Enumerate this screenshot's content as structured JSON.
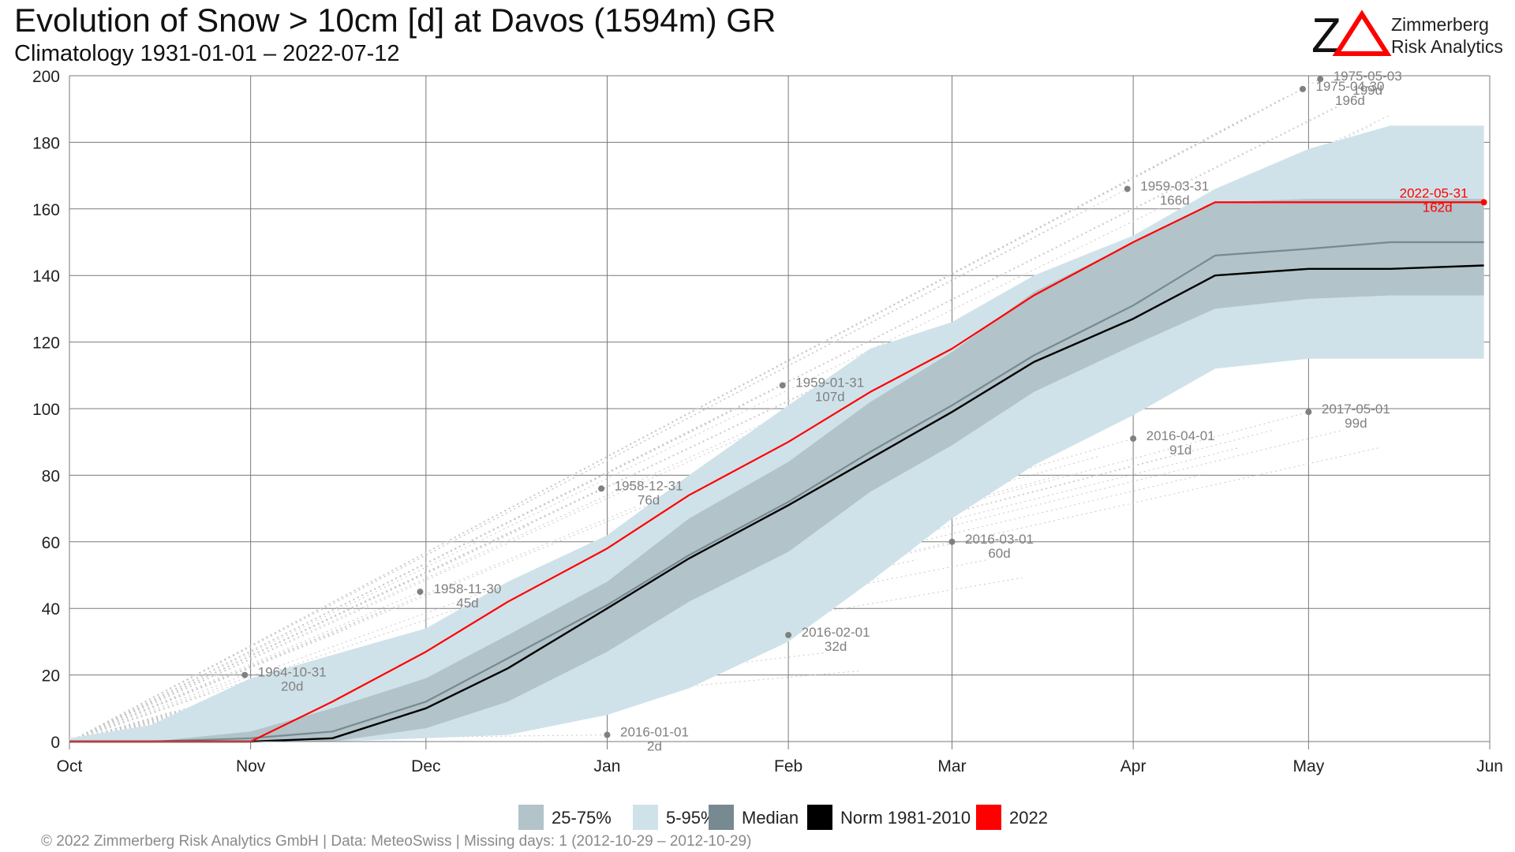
{
  "header": {
    "title": "Evolution of Snow > 10cm [d] at Davos (1594m) GR",
    "subtitle": "Climatology 1931-01-01 – 2022-07-12"
  },
  "logo": {
    "mark": "ZΔ",
    "line1": "Zimmerberg",
    "line2": "Risk Analytics"
  },
  "footer": "©  2022 Zimmerberg Risk Analytics GmbH | Data: MeteoSwiss | Missing days: 1 (2012-10-29 – 2012-10-29)",
  "colors": {
    "band_25_75": "#b2c3c9",
    "band_5_95": "#d0e2e9",
    "median": "#778a91",
    "norm": "#000000",
    "year": "#ff0000",
    "grid": "#7a7a7a",
    "annotation": "#808080"
  },
  "legend": [
    {
      "label": "25-75%",
      "color": "#b2c3c9"
    },
    {
      "label": "5-95%",
      "color": "#d0e2e9"
    },
    {
      "label": "Median",
      "color": "#778a91"
    },
    {
      "label": "Norm 1981-2010",
      "color": "#000000"
    },
    {
      "label": "2022",
      "color": "#ff0000"
    }
  ],
  "chart_data": {
    "type": "area",
    "title": "Evolution of Snow > 10cm [d] at Davos (1594m) GR",
    "subtitle": "Climatology 1931-01-01 – 2022-07-12",
    "xlabel": "",
    "ylabel": "",
    "x_range": [
      "10-01",
      "06-01"
    ],
    "ylim": [
      0,
      200
    ],
    "y_ticks": [
      0,
      20,
      40,
      60,
      80,
      100,
      120,
      140,
      160,
      180,
      200
    ],
    "x_ticks": [
      {
        "label": "Oct",
        "date": "10-01"
      },
      {
        "label": "Nov",
        "date": "11-01"
      },
      {
        "label": "Dec",
        "date": "12-01"
      },
      {
        "label": "Jan",
        "date": "01-01"
      },
      {
        "label": "Feb",
        "date": "02-01"
      },
      {
        "label": "Mar",
        "date": "03-01"
      },
      {
        "label": "Apr",
        "date": "04-01"
      },
      {
        "label": "May",
        "date": "05-01"
      },
      {
        "label": "Jun",
        "date": "06-01"
      }
    ],
    "grid": true,
    "legend_position": "bottom",
    "dates": [
      "10-01",
      "10-15",
      "11-01",
      "11-15",
      "12-01",
      "12-15",
      "01-01",
      "01-15",
      "02-01",
      "02-15",
      "03-01",
      "03-15",
      "04-01",
      "04-15",
      "05-01",
      "05-15",
      "05-31"
    ],
    "series": [
      {
        "name": "5-95%",
        "kind": "band",
        "lower": [
          0,
          0,
          0,
          0,
          1,
          2,
          8,
          16,
          30,
          48,
          67,
          83,
          98,
          112,
          115,
          115,
          115
        ],
        "upper": [
          1,
          5,
          19,
          26,
          34,
          48,
          62,
          80,
          101,
          118,
          126,
          140,
          152,
          166,
          178,
          185,
          185
        ]
      },
      {
        "name": "25-75%",
        "kind": "band",
        "lower": [
          0,
          0,
          0,
          0,
          4,
          12,
          27,
          42,
          57,
          75,
          89,
          105,
          119,
          130,
          133,
          134,
          134
        ],
        "upper": [
          0,
          0,
          3,
          10,
          19,
          32,
          48,
          67,
          84,
          102,
          117,
          135,
          150,
          162,
          163,
          163,
          163
        ]
      },
      {
        "name": "Median",
        "kind": "line",
        "values": [
          0,
          0,
          1,
          3,
          12,
          25,
          41,
          56,
          72,
          87,
          101,
          116,
          131,
          146,
          148,
          150,
          150
        ]
      },
      {
        "name": "Norm 1981-2010",
        "kind": "line",
        "values": [
          0,
          0,
          0,
          1,
          10,
          22,
          40,
          55,
          71,
          85,
          99,
          114,
          127,
          140,
          142,
          142,
          143
        ]
      },
      {
        "name": "2022",
        "kind": "line",
        "values": [
          0,
          0,
          0,
          12,
          27,
          42,
          58,
          74,
          90,
          105,
          118,
          134,
          150,
          162,
          162,
          162,
          162
        ]
      }
    ],
    "annotations": [
      {
        "date": "2022-05-31",
        "line1": "2022-05-31",
        "line2": "162d",
        "value": 162,
        "highlight": true
      },
      {
        "date": "1964-10-31",
        "line1": "1964-10-31",
        "line2": "20d",
        "value": 20
      },
      {
        "date": "1958-11-30",
        "line1": "1958-11-30",
        "line2": "45d",
        "value": 45
      },
      {
        "date": "1958-12-31",
        "line1": "1958-12-31",
        "line2": "76d",
        "value": 76
      },
      {
        "date": "1959-01-31",
        "line1": "1959-01-31",
        "line2": "107d",
        "value": 107
      },
      {
        "date": "1959-03-31",
        "line1": "1959-03-31",
        "line2": "166d",
        "value": 166
      },
      {
        "date": "1975-04-30",
        "line1": "1975-04-30",
        "line2": "196d",
        "value": 196
      },
      {
        "date": "1975-05-03",
        "line1": "1975-05-03",
        "line2": "199d",
        "value": 199
      },
      {
        "date": "2016-01-01",
        "line1": "2016-01-01",
        "line2": "2d",
        "value": 2
      },
      {
        "date": "2016-02-01",
        "line1": "2016-02-01",
        "line2": "32d",
        "value": 32
      },
      {
        "date": "2016-03-01",
        "line1": "2016-03-01",
        "line2": "60d",
        "value": 60
      },
      {
        "date": "2016-04-01",
        "line1": "2016-04-01",
        "line2": "91d",
        "value": 91
      },
      {
        "date": "2017-05-01",
        "line1": "2017-05-01",
        "line2": "99d",
        "value": 99
      }
    ]
  }
}
